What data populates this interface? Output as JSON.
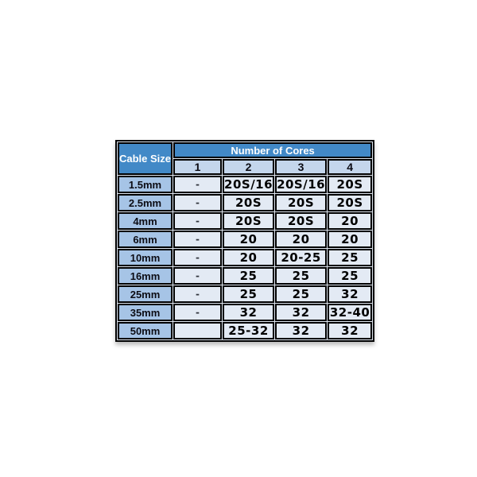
{
  "canvas": {
    "background": "#ffffff"
  },
  "colors": {
    "header_bg": "#4289c7",
    "header_text": "#ffffff",
    "column_header_bg": "#c4d6ec",
    "row_label_bg": "#a6c4e6",
    "data_cell_bg": "#e3eaf4",
    "grid_border": "#000000",
    "data_text": "#000000"
  },
  "chart_data": {
    "type": "table",
    "title": "",
    "corner_header": "Cable Size",
    "group_header": "Number of Cores",
    "columns": [
      "1",
      "2",
      "3",
      "4"
    ],
    "rows": [
      {
        "label": "1.5mm",
        "values": [
          "-",
          "20S/16",
          "20S/16",
          "20S"
        ]
      },
      {
        "label": "2.5mm",
        "values": [
          "-",
          "20S",
          "20S",
          "20S"
        ]
      },
      {
        "label": "4mm",
        "values": [
          "-",
          "20S",
          "20S",
          "20"
        ]
      },
      {
        "label": "6mm",
        "values": [
          "-",
          "20",
          "20",
          "20"
        ]
      },
      {
        "label": "10mm",
        "values": [
          "-",
          "20",
          "20-25",
          "25"
        ]
      },
      {
        "label": "16mm",
        "values": [
          "-",
          "25",
          "25",
          "25"
        ]
      },
      {
        "label": "25mm",
        "values": [
          "-",
          "25",
          "25",
          "32"
        ]
      },
      {
        "label": "35mm",
        "values": [
          "-",
          "32",
          "32",
          "32-40"
        ]
      },
      {
        "label": "50mm",
        "values": [
          "",
          "25-32",
          "32",
          "32"
        ]
      }
    ]
  }
}
